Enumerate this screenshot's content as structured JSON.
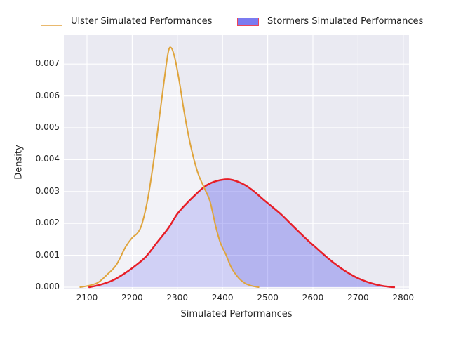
{
  "legend": {
    "items": [
      {
        "label": "Ulster Simulated Performances",
        "swatch_fill": "#ffffff",
        "swatch_border": "#e9b96e"
      },
      {
        "label": "Stormers Simulated Performances",
        "swatch_fill": "#7b7bf0",
        "swatch_border": "#ee4557"
      }
    ]
  },
  "chart_data": {
    "type": "area",
    "subtype": "kde-density",
    "title": "",
    "xlabel": "Simulated Performances",
    "ylabel": "Density",
    "xlim": [
      2049,
      2813
    ],
    "ylim": [
      0,
      0.0079
    ],
    "grid": true,
    "legend_position": "top",
    "background_color": "#eaeaf2",
    "grid_color": "#ffffff",
    "xticks": [
      2100,
      2200,
      2300,
      2400,
      2500,
      2600,
      2700,
      2800
    ],
    "xtick_labels": [
      "2100",
      "2200",
      "2300",
      "2400",
      "2500",
      "2600",
      "2700",
      "2800"
    ],
    "yticks": [
      0,
      0.001,
      0.002,
      0.003,
      0.004,
      0.005,
      0.006,
      0.007
    ],
    "ytick_labels": [
      "0.000",
      "0.001",
      "0.002",
      "0.003",
      "0.004",
      "0.005",
      "0.006",
      "0.007"
    ],
    "series": [
      {
        "name": "Ulster Simulated Performances",
        "line_color": "#dfa43c",
        "line_width": 2,
        "fill_color": "rgba(255,255,255,0.38)",
        "peak": {
          "x": 2287,
          "density": 0.0075
        },
        "points": [
          [
            2085,
            0
          ],
          [
            2105,
            5e-05
          ],
          [
            2125,
            0.00015
          ],
          [
            2145,
            0.0004
          ],
          [
            2165,
            0.0007
          ],
          [
            2185,
            0.00125
          ],
          [
            2200,
            0.00155
          ],
          [
            2212,
            0.0017
          ],
          [
            2222,
            0.002
          ],
          [
            2235,
            0.0028
          ],
          [
            2248,
            0.004
          ],
          [
            2260,
            0.0053
          ],
          [
            2270,
            0.0064
          ],
          [
            2280,
            0.00738
          ],
          [
            2287,
            0.0075
          ],
          [
            2295,
            0.00715
          ],
          [
            2305,
            0.0064
          ],
          [
            2315,
            0.0055
          ],
          [
            2330,
            0.0044
          ],
          [
            2345,
            0.0036
          ],
          [
            2360,
            0.0031
          ],
          [
            2372,
            0.0027
          ],
          [
            2385,
            0.0019
          ],
          [
            2395,
            0.0014
          ],
          [
            2408,
            0.001
          ],
          [
            2420,
            0.0006
          ],
          [
            2435,
            0.0003
          ],
          [
            2450,
            0.00012
          ],
          [
            2465,
            4e-05
          ],
          [
            2480,
            0
          ]
        ]
      },
      {
        "name": "Stormers Simulated Performances",
        "line_color": "#e71e27",
        "line_width": 2.5,
        "fill_color": "rgba(80,80,235,0.35)",
        "peak": {
          "x": 2415,
          "density": 0.00338
        },
        "points": [
          [
            2105,
            0
          ],
          [
            2130,
            8e-05
          ],
          [
            2155,
            0.0002
          ],
          [
            2180,
            0.0004
          ],
          [
            2205,
            0.00065
          ],
          [
            2230,
            0.00095
          ],
          [
            2255,
            0.0014
          ],
          [
            2280,
            0.00185
          ],
          [
            2300,
            0.0023
          ],
          [
            2320,
            0.00262
          ],
          [
            2340,
            0.0029
          ],
          [
            2360,
            0.00315
          ],
          [
            2380,
            0.0033
          ],
          [
            2400,
            0.00337
          ],
          [
            2415,
            0.00338
          ],
          [
            2430,
            0.00333
          ],
          [
            2450,
            0.0032
          ],
          [
            2470,
            0.003
          ],
          [
            2490,
            0.00275
          ],
          [
            2510,
            0.00252
          ],
          [
            2530,
            0.00228
          ],
          [
            2550,
            0.002
          ],
          [
            2570,
            0.00172
          ],
          [
            2590,
            0.00145
          ],
          [
            2610,
            0.0012
          ],
          [
            2630,
            0.00095
          ],
          [
            2650,
            0.00072
          ],
          [
            2670,
            0.00052
          ],
          [
            2690,
            0.00035
          ],
          [
            2710,
            0.00022
          ],
          [
            2730,
            0.00012
          ],
          [
            2750,
            5e-05
          ],
          [
            2770,
            1e-05
          ],
          [
            2780,
            0
          ]
        ]
      }
    ]
  }
}
